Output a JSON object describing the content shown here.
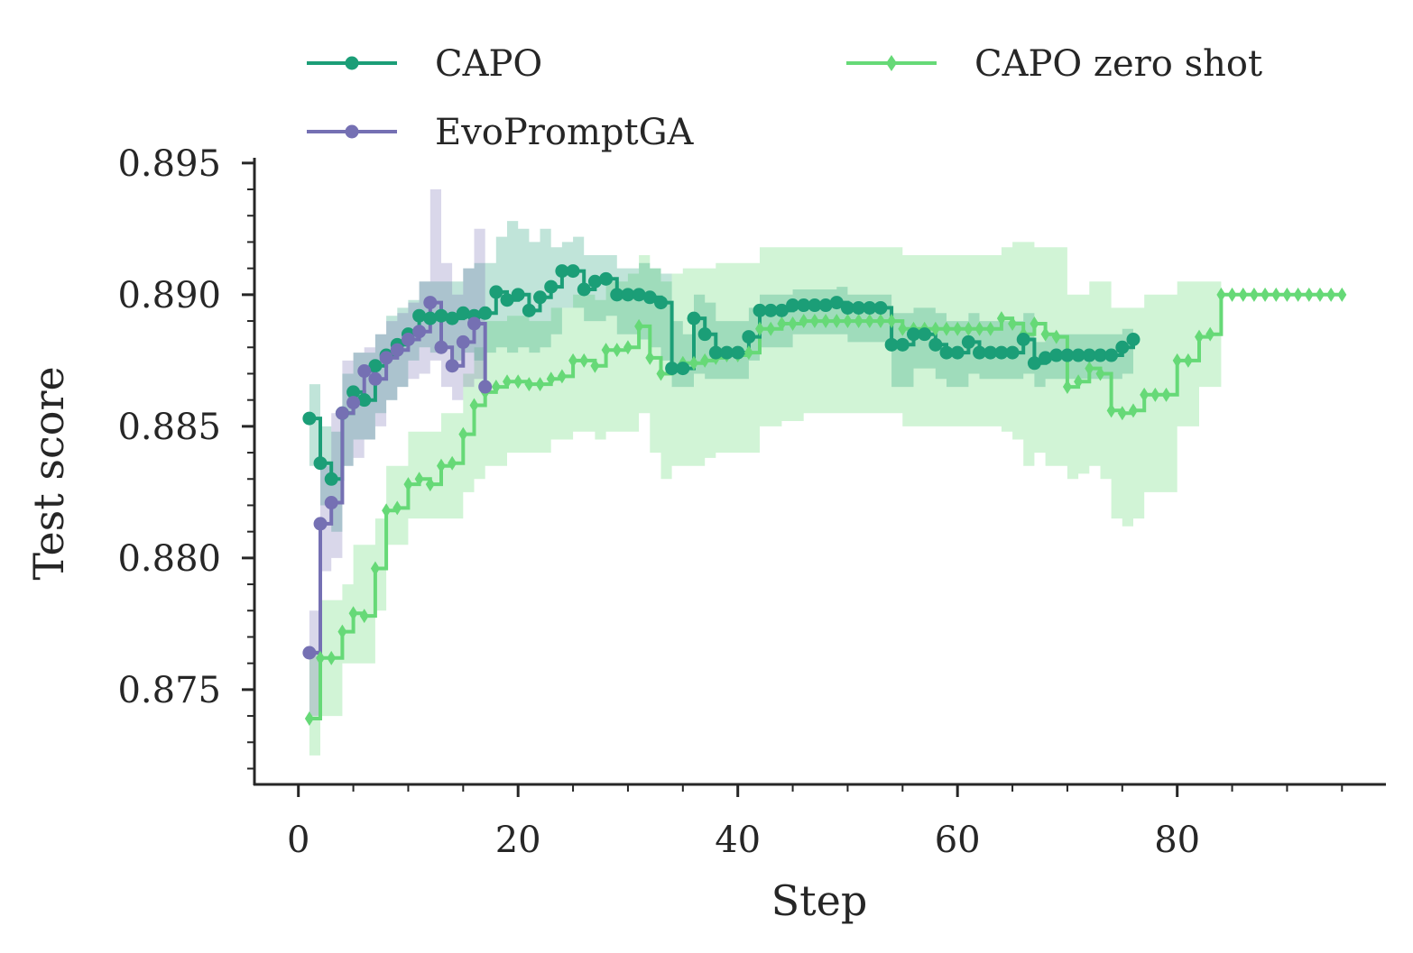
{
  "chart_data": {
    "type": "line",
    "xlabel": "Step",
    "ylabel": "Test score",
    "xlim": [
      -4,
      99
    ],
    "ylim": [
      0.8714,
      0.8952
    ],
    "xticks": [
      0,
      20,
      40,
      60,
      80
    ],
    "xtick_labels": [
      "0",
      "20",
      "40",
      "60",
      "80"
    ],
    "yticks": [
      0.875,
      0.88,
      0.885,
      0.89,
      0.895
    ],
    "ytick_labels": [
      "0.875",
      "0.880",
      "0.885",
      "0.890",
      "0.895"
    ],
    "grid": false,
    "legend_position": "top",
    "series": [
      {
        "name": "CAPO",
        "color": "#1b9e77",
        "marker": "circle",
        "x": [
          1,
          2,
          3,
          4,
          5,
          6,
          7,
          8,
          9,
          10,
          11,
          12,
          13,
          14,
          15,
          16,
          17,
          18,
          19,
          20,
          21,
          22,
          23,
          24,
          25,
          26,
          27,
          28,
          29,
          30,
          31,
          32,
          33,
          34,
          35,
          36,
          37,
          38,
          39,
          40,
          41,
          42,
          43,
          44,
          45,
          46,
          47,
          48,
          49,
          50,
          51,
          52,
          53,
          54,
          55,
          56,
          57,
          58,
          59,
          60,
          61,
          62,
          63,
          64,
          65,
          66,
          67,
          68,
          69,
          70,
          71,
          72,
          73,
          74,
          75,
          76
        ],
        "y": [
          0.8853,
          0.8836,
          0.883,
          0.8855,
          0.8863,
          0.886,
          0.8873,
          0.8877,
          0.8881,
          0.8885,
          0.8892,
          0.8891,
          0.8892,
          0.8891,
          0.8893,
          0.8892,
          0.8893,
          0.8901,
          0.8898,
          0.89,
          0.8894,
          0.8899,
          0.8903,
          0.8909,
          0.8909,
          0.8902,
          0.8905,
          0.8906,
          0.89,
          0.89,
          0.89,
          0.8899,
          0.8897,
          0.8872,
          0.8872,
          0.8891,
          0.8885,
          0.8878,
          0.8878,
          0.8878,
          0.8884,
          0.8894,
          0.8894,
          0.8894,
          0.8896,
          0.8896,
          0.8896,
          0.8896,
          0.8897,
          0.8895,
          0.8895,
          0.8895,
          0.8895,
          0.8881,
          0.8881,
          0.8885,
          0.8885,
          0.8881,
          0.8878,
          0.8878,
          0.8882,
          0.8878,
          0.8878,
          0.8878,
          0.8878,
          0.8883,
          0.8874,
          0.8876,
          0.8877,
          0.8877,
          0.8877,
          0.8877,
          0.8877,
          0.8877,
          0.888,
          0.8883
        ],
        "lower": [
          0.8835,
          0.882,
          0.881,
          0.8835,
          0.8845,
          0.8845,
          0.8855,
          0.886,
          0.8865,
          0.8875,
          0.888,
          0.8878,
          0.888,
          0.8875,
          0.8878,
          0.8875,
          0.8878,
          0.888,
          0.8878,
          0.888,
          0.8878,
          0.888,
          0.8885,
          0.8895,
          0.8895,
          0.889,
          0.889,
          0.8892,
          0.8885,
          0.8885,
          0.8883,
          0.888,
          0.8875,
          0.8865,
          0.8865,
          0.887,
          0.8868,
          0.8868,
          0.8868,
          0.8868,
          0.8875,
          0.888,
          0.888,
          0.888,
          0.8885,
          0.8885,
          0.8885,
          0.8885,
          0.8885,
          0.8882,
          0.8882,
          0.8882,
          0.8882,
          0.8865,
          0.8865,
          0.8872,
          0.8872,
          0.8868,
          0.8865,
          0.8865,
          0.887,
          0.8868,
          0.8868,
          0.8868,
          0.8868,
          0.887,
          0.8865,
          0.8868,
          0.8868,
          0.8868,
          0.8868,
          0.8868,
          0.8868,
          0.8868,
          0.887,
          0.8872
        ],
        "upper": [
          0.8866,
          0.885,
          0.8848,
          0.887,
          0.8878,
          0.8878,
          0.8885,
          0.8892,
          0.8895,
          0.8898,
          0.8905,
          0.8905,
          0.8905,
          0.8905,
          0.891,
          0.8912,
          0.8912,
          0.8922,
          0.8928,
          0.8925,
          0.892,
          0.8925,
          0.8918,
          0.892,
          0.8922,
          0.8915,
          0.8915,
          0.8915,
          0.891,
          0.891,
          0.8912,
          0.891,
          0.8908,
          0.889,
          0.8885,
          0.89,
          0.8897,
          0.889,
          0.889,
          0.889,
          0.8895,
          0.89,
          0.89,
          0.89,
          0.8902,
          0.8902,
          0.8902,
          0.8902,
          0.8903,
          0.89,
          0.89,
          0.89,
          0.89,
          0.8893,
          0.8893,
          0.8895,
          0.8895,
          0.8893,
          0.889,
          0.889,
          0.8893,
          0.889,
          0.889,
          0.889,
          0.889,
          0.8893,
          0.8882,
          0.8885,
          0.8885,
          0.8885,
          0.8885,
          0.8885,
          0.8885,
          0.8885,
          0.8887,
          0.889
        ]
      },
      {
        "name": "EvoPromptGA",
        "color": "#7570b3",
        "marker": "circle",
        "x": [
          1,
          2,
          3,
          4,
          5,
          6,
          7,
          8,
          9,
          10,
          11,
          12,
          13,
          14,
          15,
          16,
          17
        ],
        "y": [
          0.8764,
          0.8813,
          0.8821,
          0.8855,
          0.8859,
          0.8871,
          0.8868,
          0.8876,
          0.8879,
          0.8883,
          0.8886,
          0.8897,
          0.888,
          0.8873,
          0.8882,
          0.8889,
          0.8865
        ],
        "lower": [
          0.874,
          0.8795,
          0.88,
          0.8835,
          0.8838,
          0.8845,
          0.885,
          0.886,
          0.8865,
          0.8868,
          0.887,
          0.8875,
          0.8865,
          0.886,
          0.8865,
          0.8868,
          0.8855
        ],
        "upper": [
          0.878,
          0.8835,
          0.8855,
          0.8875,
          0.8878,
          0.888,
          0.8885,
          0.889,
          0.8893,
          0.8897,
          0.8905,
          0.894,
          0.8912,
          0.89,
          0.891,
          0.8925,
          0.889
        ]
      },
      {
        "name": "CAPO zero shot",
        "color": "#66d977",
        "marker": "diamond",
        "x": [
          1,
          2,
          3,
          4,
          5,
          6,
          7,
          8,
          9,
          10,
          11,
          12,
          13,
          14,
          15,
          16,
          17,
          18,
          19,
          20,
          21,
          22,
          23,
          24,
          25,
          26,
          27,
          28,
          29,
          30,
          31,
          32,
          33,
          34,
          35,
          36,
          37,
          38,
          39,
          40,
          41,
          42,
          43,
          44,
          45,
          46,
          47,
          48,
          49,
          50,
          51,
          52,
          53,
          54,
          55,
          56,
          57,
          58,
          59,
          60,
          61,
          62,
          63,
          64,
          65,
          66,
          67,
          68,
          69,
          70,
          71,
          72,
          73,
          74,
          75,
          76,
          77,
          78,
          79,
          80,
          81,
          82,
          83,
          84,
          85,
          86,
          87,
          88,
          89,
          90,
          91,
          92,
          93,
          94,
          95
        ],
        "y": [
          0.8739,
          0.8762,
          0.8762,
          0.8772,
          0.8779,
          0.8778,
          0.8796,
          0.8818,
          0.8819,
          0.8828,
          0.883,
          0.8828,
          0.8835,
          0.8836,
          0.8847,
          0.8858,
          0.8863,
          0.8865,
          0.8867,
          0.8867,
          0.8866,
          0.8866,
          0.8868,
          0.8869,
          0.8875,
          0.8875,
          0.8873,
          0.8879,
          0.8879,
          0.888,
          0.8888,
          0.8876,
          0.887,
          0.8872,
          0.8874,
          0.8874,
          0.8875,
          0.8876,
          0.8877,
          0.8877,
          0.8878,
          0.8887,
          0.8887,
          0.8889,
          0.8889,
          0.889,
          0.889,
          0.889,
          0.889,
          0.889,
          0.889,
          0.889,
          0.889,
          0.889,
          0.8887,
          0.8887,
          0.8887,
          0.8887,
          0.8887,
          0.8887,
          0.8887,
          0.8887,
          0.8887,
          0.8891,
          0.8889,
          0.8885,
          0.8889,
          0.8885,
          0.8884,
          0.8865,
          0.8867,
          0.8872,
          0.887,
          0.8856,
          0.8855,
          0.8856,
          0.8862,
          0.8862,
          0.8862,
          0.8875,
          0.8875,
          0.8884,
          0.8885,
          0.89,
          0.89,
          0.89,
          0.89,
          0.89,
          0.89,
          0.89,
          0.89,
          0.89,
          0.89,
          0.89,
          0.89
        ],
        "lower": [
          0.8725,
          0.874,
          0.874,
          0.876,
          0.876,
          0.876,
          0.878,
          0.8805,
          0.8805,
          0.8815,
          0.8815,
          0.8815,
          0.8815,
          0.8815,
          0.8825,
          0.883,
          0.8835,
          0.8835,
          0.884,
          0.884,
          0.884,
          0.884,
          0.8845,
          0.8845,
          0.8848,
          0.8848,
          0.8845,
          0.8848,
          0.8848,
          0.8848,
          0.8855,
          0.884,
          0.883,
          0.8835,
          0.8835,
          0.8835,
          0.8838,
          0.884,
          0.884,
          0.884,
          0.884,
          0.885,
          0.885,
          0.8852,
          0.8852,
          0.8855,
          0.8855,
          0.8855,
          0.8855,
          0.8855,
          0.8855,
          0.8855,
          0.8855,
          0.8855,
          0.885,
          0.885,
          0.885,
          0.885,
          0.885,
          0.885,
          0.885,
          0.885,
          0.885,
          0.8848,
          0.8845,
          0.8835,
          0.884,
          0.8835,
          0.8835,
          0.883,
          0.8832,
          0.8835,
          0.883,
          0.8815,
          0.8812,
          0.8815,
          0.8825,
          0.8825,
          0.8825,
          0.885,
          0.885,
          0.8865,
          0.8865,
          0.89,
          0.89,
          0.89,
          0.89,
          0.89,
          0.89,
          0.89,
          0.89,
          0.89,
          0.89,
          0.89,
          0.89
        ],
        "upper": [
          0.8765,
          0.8784,
          0.8784,
          0.879,
          0.8805,
          0.8805,
          0.8815,
          0.8835,
          0.8835,
          0.8848,
          0.8848,
          0.8848,
          0.8855,
          0.8855,
          0.887,
          0.888,
          0.889,
          0.889,
          0.8892,
          0.8892,
          0.889,
          0.889,
          0.8895,
          0.8895,
          0.89,
          0.89,
          0.8898,
          0.8905,
          0.8905,
          0.8908,
          0.8915,
          0.891,
          0.8905,
          0.8908,
          0.891,
          0.891,
          0.891,
          0.8912,
          0.8912,
          0.8912,
          0.8912,
          0.8918,
          0.8918,
          0.8918,
          0.8918,
          0.8918,
          0.8918,
          0.8918,
          0.8918,
          0.8918,
          0.8918,
          0.8918,
          0.8918,
          0.8918,
          0.8915,
          0.8915,
          0.8915,
          0.8915,
          0.8915,
          0.8915,
          0.8915,
          0.8915,
          0.8915,
          0.8918,
          0.892,
          0.892,
          0.8918,
          0.8918,
          0.8918,
          0.89,
          0.89,
          0.8905,
          0.8905,
          0.8895,
          0.8895,
          0.8895,
          0.89,
          0.89,
          0.89,
          0.8905,
          0.8905,
          0.8905,
          0.8905,
          0.89,
          0.89,
          0.89,
          0.89,
          0.89,
          0.89,
          0.89,
          0.89,
          0.89,
          0.89,
          0.89,
          0.89
        ]
      }
    ]
  }
}
